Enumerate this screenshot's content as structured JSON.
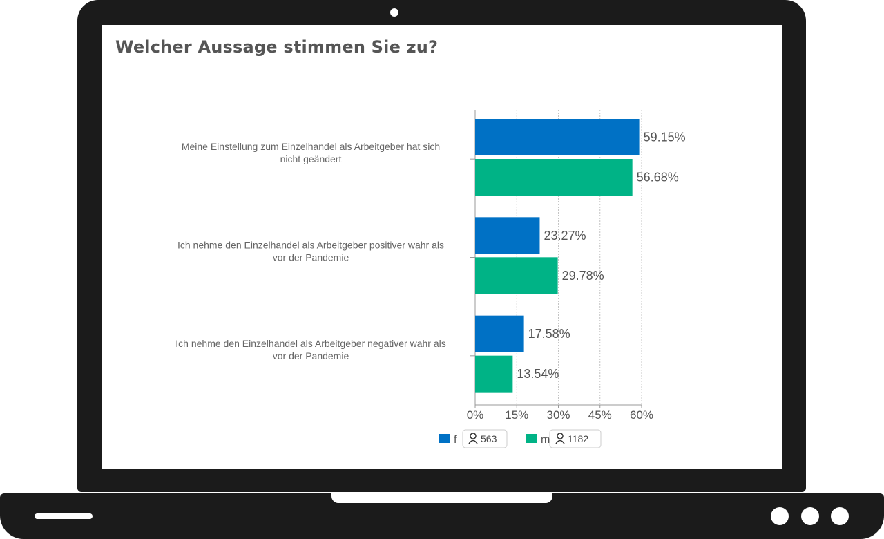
{
  "question": "Welcher Aussage stimmen Sie zu?",
  "colors": {
    "f": "#0071c5",
    "m": "#00b386",
    "frame": "#1b1b1b"
  },
  "chart_data": {
    "type": "bar",
    "orientation": "horizontal",
    "title": "Welcher Aussage stimmen Sie zu?",
    "categories": [
      [
        "Meine Einstellung zum Einzelhandel als Arbeitgeber hat sich",
        "nicht geändert"
      ],
      [
        "Ich nehme den Einzelhandel als Arbeitgeber positiver wahr als",
        "vor der Pandemie"
      ],
      [
        "Ich nehme den Einzelhandel als Arbeitgeber negativer wahr als",
        "vor der Pandemie"
      ]
    ],
    "series": [
      {
        "name": "f",
        "count": "563",
        "values": [
          59.15,
          23.27,
          17.58
        ],
        "labels": [
          "59.15%",
          "23.27%",
          "17.58%"
        ]
      },
      {
        "name": "m",
        "count": "1182",
        "values": [
          56.68,
          29.78,
          13.54
        ],
        "labels": [
          "56.68%",
          "29.78%",
          "13.54%"
        ]
      }
    ],
    "xlim": [
      0,
      60
    ],
    "xticks": [
      "0%",
      "15%",
      "30%",
      "45%",
      "60%"
    ],
    "grid": true,
    "legend": "bottom"
  }
}
